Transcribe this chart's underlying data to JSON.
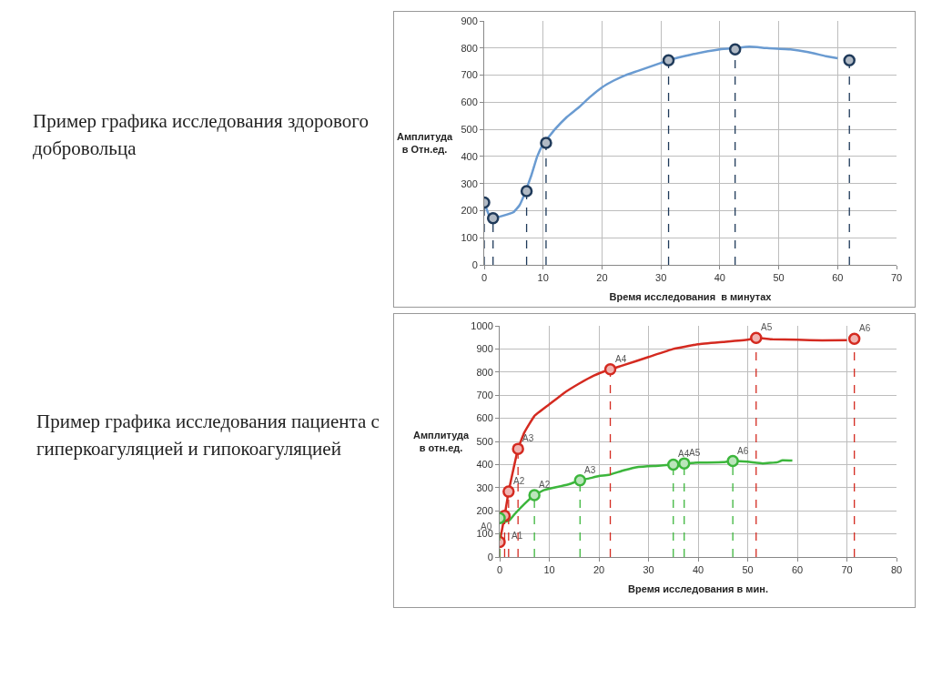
{
  "chart_data": [
    {
      "type": "line",
      "title": "Пример графика исследования здорового добровольца",
      "xlabel": "Время исследования  в минутах",
      "ylabel": "Амплитуда в Отн.ед.",
      "xlim": [
        0,
        70
      ],
      "xticks": [
        0,
        10,
        20,
        30,
        40,
        50,
        60,
        70
      ],
      "ylim": [
        0,
        900
      ],
      "yticks": [
        0,
        100,
        200,
        300,
        400,
        500,
        600,
        700,
        800,
        900
      ],
      "grid": true,
      "series": [
        {
          "type": "line",
          "color": "#6a9bd1",
          "x": [
            0,
            0.8,
            1.5,
            3,
            5,
            6,
            7,
            8,
            9,
            10,
            12,
            14,
            16,
            18,
            20,
            22,
            24,
            26,
            28,
            30,
            31.3,
            35,
            40,
            42.6,
            45,
            48,
            52,
            55,
            58,
            60
          ],
          "values": [
            230,
            185,
            172,
            180,
            195,
            220,
            270,
            330,
            400,
            445,
            500,
            545,
            580,
            620,
            655,
            680,
            700,
            715,
            730,
            745,
            755,
            775,
            795,
            800,
            805,
            800,
            795,
            785,
            770,
            762
          ]
        },
        {
          "type": "lollipop",
          "color": "#1f3a5a",
          "marker": "circle",
          "line_style": "dashed",
          "x": [
            0,
            1.5,
            7.2,
            10.5,
            31.3,
            42.6,
            62
          ],
          "values": [
            230,
            172,
            272,
            450,
            755,
            795,
            755
          ]
        }
      ]
    },
    {
      "type": "line",
      "title": "Пример графика исследования пациента с гиперкоагуляцией и гипокоагуляцией",
      "xlabel": "Время исследования в мин.",
      "ylabel": "Амплитуда в отн.ед.",
      "xlim": [
        0,
        80
      ],
      "xticks": [
        0,
        10,
        20,
        30,
        40,
        50,
        60,
        70,
        80
      ],
      "ylim": [
        0,
        1000
      ],
      "yticks": [
        0,
        100,
        200,
        300,
        400,
        500,
        600,
        700,
        800,
        900,
        1000
      ],
      "grid": true,
      "series": [
        {
          "type": "line",
          "color": "#d42a20",
          "x": [
            0,
            1,
            1.8,
            3.7,
            5,
            7,
            10,
            13,
            16,
            19,
            22.3,
            25,
            30,
            35,
            40,
            45,
            50,
            51.7,
            55,
            60,
            65,
            70
          ],
          "values": [
            65,
            178,
            283,
            468,
            540,
            610,
            660,
            710,
            750,
            785,
            812,
            830,
            865,
            900,
            920,
            930,
            940,
            948,
            942,
            940,
            937,
            938
          ]
        },
        {
          "type": "line",
          "color": "#3cb63c",
          "x": [
            0,
            1,
            2,
            3,
            5,
            7,
            9,
            12,
            14,
            16.2,
            18,
            20,
            22,
            25,
            28,
            32,
            35,
            37.2,
            40,
            45,
            47,
            50,
            53,
            56,
            57,
            59
          ],
          "values": [
            168,
            152,
            160,
            185,
            230,
            268,
            290,
            305,
            315,
            332,
            340,
            350,
            355,
            375,
            390,
            395,
            400,
            405,
            408,
            410,
            415,
            412,
            405,
            410,
            418,
            417
          ]
        },
        {
          "type": "lollipop",
          "color": "#d42a20",
          "marker": "circle",
          "line_style": "dashed",
          "x": [
            0,
            1,
            1.8,
            3.7,
            22.3,
            51.7,
            71.5
          ],
          "values": [
            65,
            178,
            283,
            468,
            812,
            948,
            944
          ]
        },
        {
          "type": "lollipop",
          "color": "#3cb63c",
          "marker": "circle",
          "line_style": "dashed",
          "x": [
            0,
            7,
            16.2,
            35,
            37.2,
            47
          ],
          "values": [
            168,
            268,
            332,
            400,
            405,
            415
          ]
        }
      ],
      "annotations": [
        {
          "text": "A0",
          "x": 0,
          "y": 168
        },
        {
          "text": "A1",
          "x": 1,
          "y": 152
        },
        {
          "text": "A2",
          "x": 1.8,
          "y": 283
        },
        {
          "text": "A3",
          "x": 3.7,
          "y": 468
        },
        {
          "text": "A4",
          "x": 22.3,
          "y": 812
        },
        {
          "text": "A5",
          "x": 51.7,
          "y": 948
        },
        {
          "text": "A6",
          "x": 71.5,
          "y": 944
        },
        {
          "text": "A2",
          "x": 7,
          "y": 268
        },
        {
          "text": "A3",
          "x": 16.2,
          "y": 332
        },
        {
          "text": "A4",
          "x": 35,
          "y": 400
        },
        {
          "text": "A5",
          "x": 37.2,
          "y": 405
        },
        {
          "text": "A6",
          "x": 47,
          "y": 415
        }
      ]
    }
  ]
}
